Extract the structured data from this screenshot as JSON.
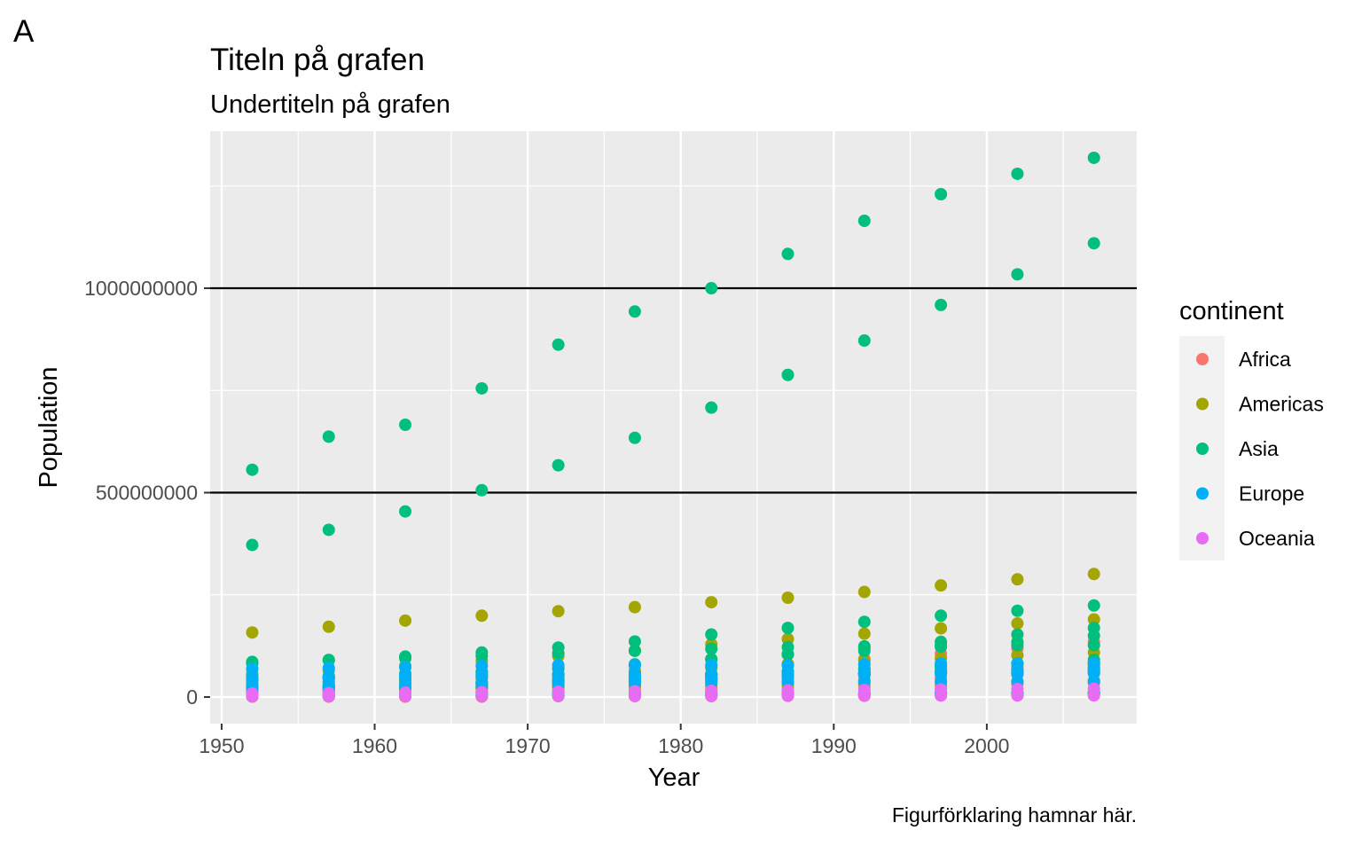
{
  "chart_data": {
    "type": "scatter",
    "tag": "A",
    "title": "Titeln på grafen",
    "subtitle": "Undertiteln på grafen",
    "caption": "Figurförklaring hamnar här.",
    "xlabel": "Year",
    "ylabel": "Population",
    "xlim": [
      1949.25,
      2009.8
    ],
    "ylim": [
      -65000000,
      1384000000
    ],
    "x_ticks": [
      1950,
      1960,
      1970,
      1980,
      1990,
      2000
    ],
    "x_tick_labels": [
      "1950",
      "1960",
      "1970",
      "1980",
      "1990",
      "2000"
    ],
    "y_ticks": [
      0,
      500000000,
      1000000000
    ],
    "y_tick_labels": [
      "0",
      "500000000",
      "1000000000"
    ],
    "hlines": [
      500000000,
      1000000000
    ],
    "grid": true,
    "legend": {
      "title": "continent",
      "position": "right"
    },
    "x": [
      1952,
      1957,
      1962,
      1967,
      1972,
      1977,
      1982,
      1987,
      1992,
      1997,
      2002,
      2007
    ],
    "series": [
      {
        "name": "Africa",
        "color": "#F8766D",
        "values": [
          [
            33,
            37,
            41,
            47,
            53,
            62,
            73,
            81,
            93,
            106,
            119,
            135
          ],
          [
            22,
            25,
            28,
            31,
            34,
            38,
            45,
            52,
            59,
            66,
            73,
            80
          ],
          [
            20,
            22,
            24,
            26,
            30,
            34,
            39,
            46,
            53,
            60,
            67,
            77
          ],
          [
            14,
            16,
            18,
            20,
            23,
            27,
            31,
            36,
            41,
            47,
            55,
            65
          ],
          [
            9,
            10,
            11,
            12,
            14,
            16,
            18,
            21,
            25,
            28,
            32,
            35
          ],
          [
            2,
            2,
            3,
            3,
            4,
            4,
            5,
            6,
            7,
            8,
            9,
            10
          ],
          [
            1,
            1,
            1,
            1,
            2,
            2,
            2,
            3,
            3,
            4,
            4,
            5
          ]
        ]
      },
      {
        "name": "Americas",
        "color": "#A3A500",
        "values": [
          [
            158,
            172,
            187,
            199,
            210,
            220,
            232,
            243,
            257,
            273,
            288,
            301
          ],
          [
            57,
            65,
            76,
            88,
            100,
            114,
            129,
            142,
            155,
            168,
            180,
            190
          ],
          [
            30,
            35,
            41,
            48,
            56,
            64,
            71,
            80,
            89,
            95,
            102,
            109
          ],
          [
            14,
            16,
            19,
            21,
            23,
            25,
            27,
            30,
            33,
            36,
            38,
            40
          ],
          [
            3,
            3,
            4,
            4,
            5,
            5,
            6,
            6,
            7,
            8,
            8,
            9
          ]
        ]
      },
      {
        "name": "Asia",
        "color": "#00BF7D",
        "values": [
          [
            556,
            637,
            666,
            755,
            862,
            943,
            1000,
            1084,
            1165,
            1230,
            1280,
            1319
          ],
          [
            372,
            409,
            454,
            506,
            567,
            634,
            708,
            788,
            872,
            959,
            1034,
            1110
          ],
          [
            82,
            90,
            99,
            109,
            121,
            136,
            153,
            169,
            184,
            199,
            211,
            224
          ],
          [
            86,
            91,
            95,
            100,
            107,
            113,
            118,
            122,
            124,
            126,
            127,
            127
          ],
          [
            41,
            46,
            51,
            60,
            70,
            78,
            92,
            105,
            120,
            135,
            153,
            169
          ],
          [
            46,
            51,
            57,
            62,
            70,
            80,
            93,
            104,
            113,
            123,
            135,
            150
          ],
          [
            26,
            28,
            33,
            37,
            44,
            51,
            56,
            63,
            70,
            76,
            81,
            85
          ],
          [
            22,
            26,
            30,
            35,
            41,
            47,
            53,
            60,
            67,
            75,
            82,
            91
          ],
          [
            21,
            25,
            29,
            34,
            39,
            45,
            48,
            52,
            55,
            60,
            62,
            65
          ],
          [
            17,
            19,
            22,
            26,
            30,
            35,
            43,
            51,
            60,
            63,
            66,
            69
          ],
          [
            2,
            2,
            3,
            3,
            4,
            4,
            5,
            6,
            7,
            8,
            9,
            10
          ]
        ]
      },
      {
        "name": "Europe",
        "color": "#00B0F6",
        "values": [
          [
            69,
            71,
            73,
            76,
            78,
            78,
            78,
            77,
            80,
            82,
            82,
            82
          ],
          [
            50,
            51,
            53,
            55,
            56,
            56,
            56,
            57,
            58,
            58,
            59,
            60
          ],
          [
            47,
            49,
            51,
            53,
            54,
            56,
            56,
            56,
            56,
            57,
            57,
            58
          ],
          [
            42,
            44,
            47,
            50,
            52,
            53,
            55,
            56,
            57,
            58,
            59,
            61
          ],
          [
            22,
            25,
            29,
            33,
            37,
            42,
            47,
            52,
            58,
            63,
            67,
            71
          ],
          [
            25,
            28,
            30,
            32,
            33,
            35,
            36,
            37,
            38,
            38,
            38,
            38
          ],
          [
            8,
            8,
            9,
            9,
            10,
            10,
            10,
            10,
            10,
            10,
            10,
            10
          ]
        ]
      },
      {
        "name": "Oceania",
        "color": "#E76BF3",
        "values": [
          [
            8.7,
            9.7,
            10.8,
            11.9,
            13.2,
            14.1,
            15.2,
            16.3,
            17.5,
            18.6,
            19.5,
            20.4
          ],
          [
            1.9,
            2.1,
            2.5,
            2.7,
            2.9,
            3.2,
            3.2,
            3.3,
            3.4,
            3.7,
            3.9,
            4.1
          ]
        ]
      }
    ],
    "value_unit_multiplier": 1000000
  }
}
